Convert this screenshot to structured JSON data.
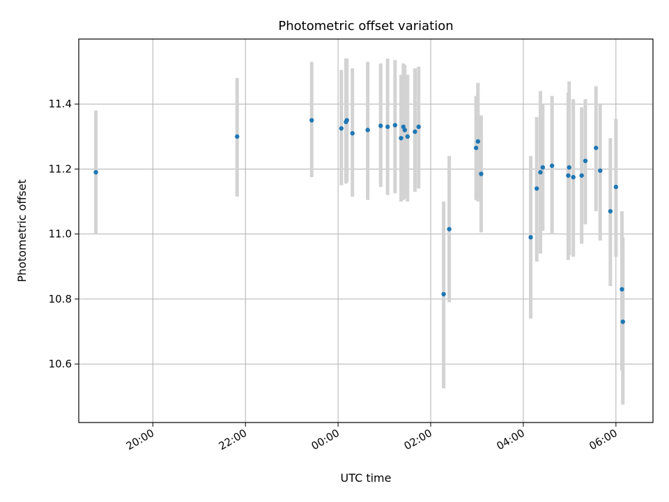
{
  "chart_data": {
    "type": "scatter",
    "title": "Photometric offset variation",
    "xlabel": "UTC time",
    "ylabel": "Photometric offset",
    "x_unit": "hours (UTC), values >= 24 fall on the following day",
    "xlim": [
      18.4,
      30.8
    ],
    "ylim": [
      10.42,
      11.6
    ],
    "x_ticks": [
      20,
      22,
      24,
      26,
      28,
      30
    ],
    "x_tick_labels": [
      "20:00",
      "22:00",
      "00:00",
      "02:00",
      "04:00",
      "06:00"
    ],
    "y_ticks": [
      10.6,
      10.8,
      11.0,
      11.2,
      11.4
    ],
    "y_tick_labels": [
      "10.6",
      "10.8",
      "11.0",
      "11.2",
      "11.4"
    ],
    "grid": true,
    "marker_color": "#1f77b4",
    "errorbar_color": "#d3d3d3",
    "points": [
      {
        "x": 18.77,
        "y": 11.19,
        "ylow": 11.0,
        "yhigh": 11.38
      },
      {
        "x": 21.82,
        "y": 11.3,
        "ylow": 11.115,
        "yhigh": 11.48
      },
      {
        "x": 23.43,
        "y": 11.35,
        "ylow": 11.175,
        "yhigh": 11.53
      },
      {
        "x": 24.07,
        "y": 11.325,
        "ylow": 11.15,
        "yhigh": 11.505
      },
      {
        "x": 24.17,
        "y": 11.345,
        "ylow": 11.155,
        "yhigh": 11.54
      },
      {
        "x": 24.19,
        "y": 11.35,
        "ylow": 11.16,
        "yhigh": 11.54
      },
      {
        "x": 24.31,
        "y": 11.31,
        "ylow": 11.115,
        "yhigh": 11.51
      },
      {
        "x": 24.64,
        "y": 11.32,
        "ylow": 11.105,
        "yhigh": 11.53
      },
      {
        "x": 24.92,
        "y": 11.333,
        "ylow": 11.145,
        "yhigh": 11.525
      },
      {
        "x": 25.07,
        "y": 11.33,
        "ylow": 11.12,
        "yhigh": 11.54
      },
      {
        "x": 25.23,
        "y": 11.335,
        "ylow": 11.125,
        "yhigh": 11.535
      },
      {
        "x": 25.36,
        "y": 11.295,
        "ylow": 11.1,
        "yhigh": 11.49
      },
      {
        "x": 25.41,
        "y": 11.33,
        "ylow": 11.105,
        "yhigh": 11.525
      },
      {
        "x": 25.44,
        "y": 11.32,
        "ylow": 11.11,
        "yhigh": 11.52
      },
      {
        "x": 25.5,
        "y": 11.3,
        "ylow": 11.1,
        "yhigh": 11.49
      },
      {
        "x": 25.66,
        "y": 11.315,
        "ylow": 11.13,
        "yhigh": 11.51
      },
      {
        "x": 25.74,
        "y": 11.33,
        "ylow": 11.14,
        "yhigh": 11.515
      },
      {
        "x": 26.28,
        "y": 10.815,
        "ylow": 10.525,
        "yhigh": 11.1
      },
      {
        "x": 26.4,
        "y": 11.015,
        "ylow": 10.79,
        "yhigh": 11.24
      },
      {
        "x": 26.98,
        "y": 11.265,
        "ylow": 11.105,
        "yhigh": 11.425
      },
      {
        "x": 27.02,
        "y": 11.285,
        "ylow": 11.1,
        "yhigh": 11.465
      },
      {
        "x": 27.09,
        "y": 11.185,
        "ylow": 11.005,
        "yhigh": 11.365
      },
      {
        "x": 28.16,
        "y": 10.99,
        "ylow": 10.74,
        "yhigh": 11.24
      },
      {
        "x": 28.29,
        "y": 11.14,
        "ylow": 10.915,
        "yhigh": 11.36
      },
      {
        "x": 28.37,
        "y": 11.19,
        "ylow": 10.94,
        "yhigh": 11.44
      },
      {
        "x": 28.42,
        "y": 11.205,
        "ylow": 11.01,
        "yhigh": 11.4
      },
      {
        "x": 28.62,
        "y": 11.21,
        "ylow": 11.0,
        "yhigh": 11.425
      },
      {
        "x": 28.97,
        "y": 11.18,
        "ylow": 10.92,
        "yhigh": 11.435
      },
      {
        "x": 28.99,
        "y": 11.205,
        "ylow": 10.935,
        "yhigh": 11.47
      },
      {
        "x": 29.08,
        "y": 11.175,
        "ylow": 10.93,
        "yhigh": 11.415
      },
      {
        "x": 29.26,
        "y": 11.18,
        "ylow": 10.97,
        "yhigh": 11.39
      },
      {
        "x": 29.34,
        "y": 11.225,
        "ylow": 11.03,
        "yhigh": 11.415
      },
      {
        "x": 29.57,
        "y": 11.265,
        "ylow": 11.07,
        "yhigh": 11.455
      },
      {
        "x": 29.66,
        "y": 11.195,
        "ylow": 10.98,
        "yhigh": 11.4
      },
      {
        "x": 29.88,
        "y": 11.07,
        "ylow": 10.84,
        "yhigh": 11.295
      },
      {
        "x": 30.0,
        "y": 11.145,
        "ylow": 10.93,
        "yhigh": 11.355
      },
      {
        "x": 30.13,
        "y": 10.83,
        "ylow": 10.58,
        "yhigh": 11.07
      },
      {
        "x": 30.15,
        "y": 10.73,
        "ylow": 10.475,
        "yhigh": 10.99
      }
    ]
  }
}
